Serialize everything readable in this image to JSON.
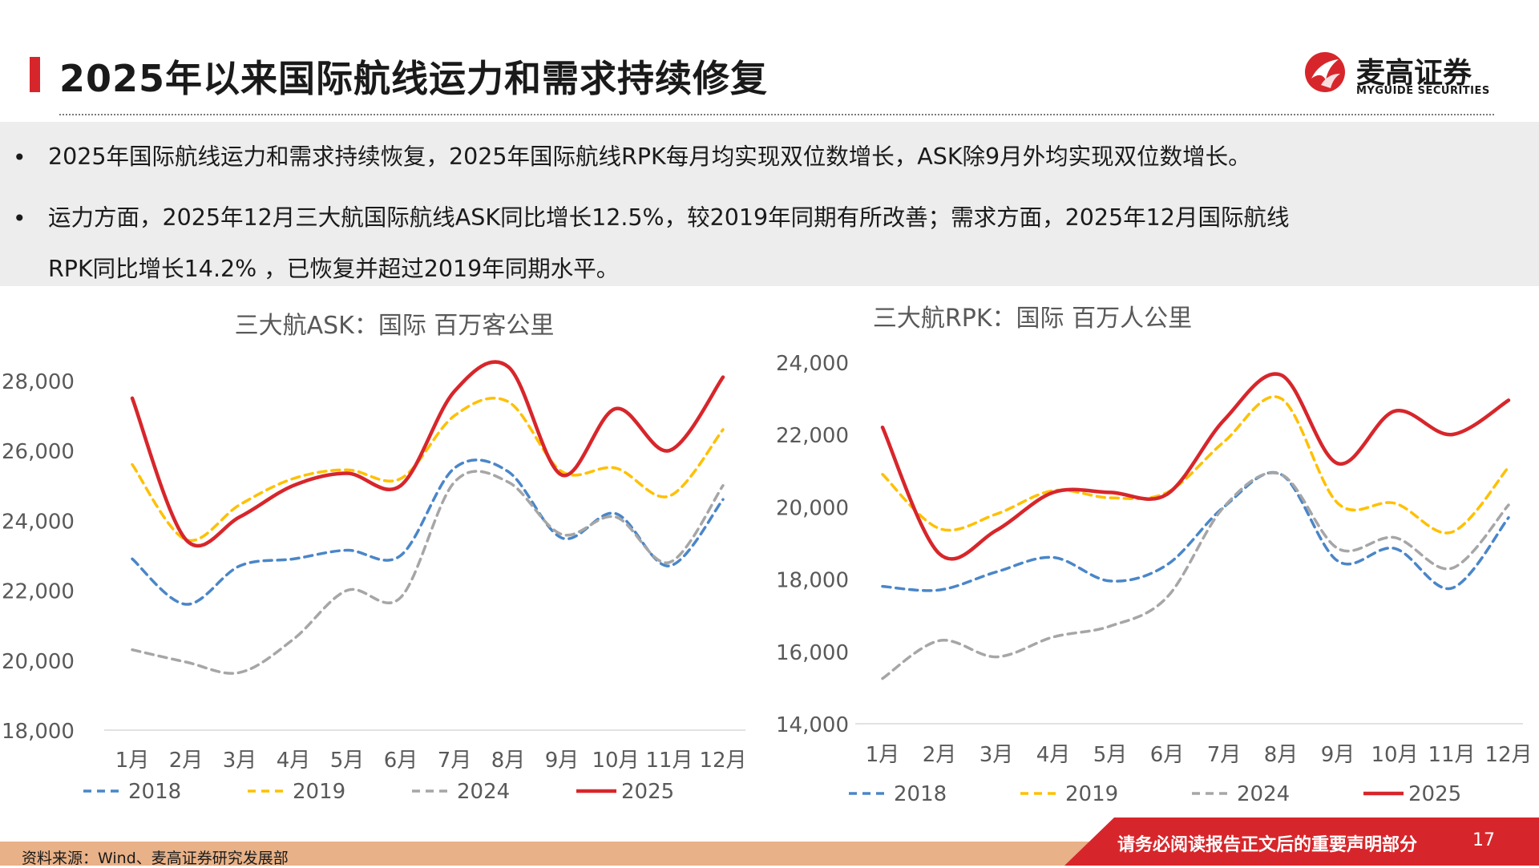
{
  "header": {
    "title": "2025年以来国际航线运力和需求持续修复",
    "logo_name": "麦高证券",
    "logo_sub": "MYGUIDE SECURITIES",
    "accent_color": "#d7262b"
  },
  "bullets": [
    {
      "lines": [
        "2025年国际航线运力和需求持续恢复，2025年国际航线RPK每月均实现双位数增长，ASK除9月外均实现双位数增长。"
      ]
    },
    {
      "lines": [
        "运力方面，2025年12月三大航国际航线ASK同比增长12.5%，较2019年同期有所改善；需求方面，2025年12月国际航线",
        "RPK同比增长14.2% ，已恢复并超过2019年同期水平。"
      ]
    }
  ],
  "chart_data": [
    {
      "type": "line",
      "title": "三大航ASK：国际 百万客公里",
      "categories": [
        "1月",
        "2月",
        "3月",
        "4月",
        "5月",
        "6月",
        "7月",
        "8月",
        "9月",
        "10月",
        "11月",
        "12月"
      ],
      "ylim": [
        18000,
        28000
      ],
      "yticks": [
        18000,
        20000,
        22000,
        24000,
        26000,
        28000
      ],
      "ytick_labels": [
        "18,000",
        "20,000",
        "22,000",
        "24,000",
        "26,000",
        "28,000"
      ],
      "grid": false,
      "legend_position": "bottom",
      "series": [
        {
          "name": "2018",
          "color": "#4a86c8",
          "dash": "dashed",
          "values": [
            22900,
            21600,
            22700,
            22900,
            23150,
            23000,
            25500,
            25400,
            23500,
            24200,
            22700,
            24600
          ]
        },
        {
          "name": "2019",
          "color": "#ffc000",
          "dash": "dashed",
          "values": [
            25600,
            23450,
            24450,
            25200,
            25450,
            25200,
            27000,
            27400,
            25400,
            25500,
            24700,
            26600
          ]
        },
        {
          "name": "2024",
          "color": "#a6a6a6",
          "dash": "dashed",
          "values": [
            20300,
            19950,
            19650,
            20600,
            22000,
            21800,
            25100,
            25100,
            23600,
            24100,
            22800,
            25000
          ]
        },
        {
          "name": "2025",
          "color": "#d7262b",
          "dash": "solid",
          "values": [
            27500,
            23450,
            24100,
            25000,
            25350,
            25000,
            27700,
            28400,
            25300,
            27200,
            26000,
            28100
          ]
        }
      ]
    },
    {
      "type": "line",
      "title": "三大航RPK：国际 百万人公里",
      "categories": [
        "1月",
        "2月",
        "3月",
        "4月",
        "5月",
        "6月",
        "7月",
        "8月",
        "9月",
        "10月",
        "11月",
        "12月"
      ],
      "ylim": [
        14000,
        24000
      ],
      "yticks": [
        14000,
        16000,
        18000,
        20000,
        22000,
        24000
      ],
      "ytick_labels": [
        "14,000",
        "16,000",
        "18,000",
        "20,000",
        "22,000",
        "24,000"
      ],
      "grid": false,
      "legend_position": "bottom",
      "series": [
        {
          "name": "2018",
          "color": "#4a86c8",
          "dash": "dashed",
          "values": [
            17800,
            17700,
            18200,
            18600,
            17950,
            18400,
            20000,
            20900,
            18500,
            18850,
            17750,
            19700
          ]
        },
        {
          "name": "2019",
          "color": "#ffc000",
          "dash": "dashed",
          "values": [
            20900,
            19400,
            19800,
            20450,
            20250,
            20400,
            21800,
            23000,
            20100,
            20100,
            19300,
            21100
          ]
        },
        {
          "name": "2024",
          "color": "#a6a6a6",
          "dash": "dashed",
          "values": [
            15250,
            16300,
            15850,
            16400,
            16700,
            17500,
            20000,
            20900,
            18850,
            19150,
            18300,
            20050
          ]
        },
        {
          "name": "2025",
          "color": "#d7262b",
          "dash": "solid",
          "values": [
            22200,
            18700,
            19350,
            20400,
            20400,
            20350,
            22400,
            23650,
            21200,
            22650,
            22000,
            22950
          ]
        }
      ]
    }
  ],
  "footer": {
    "source": "资料来源：Wind、麦高证券研究发展部",
    "notice": "请务必阅读报告正文后的重要声明部分",
    "page": "17"
  }
}
